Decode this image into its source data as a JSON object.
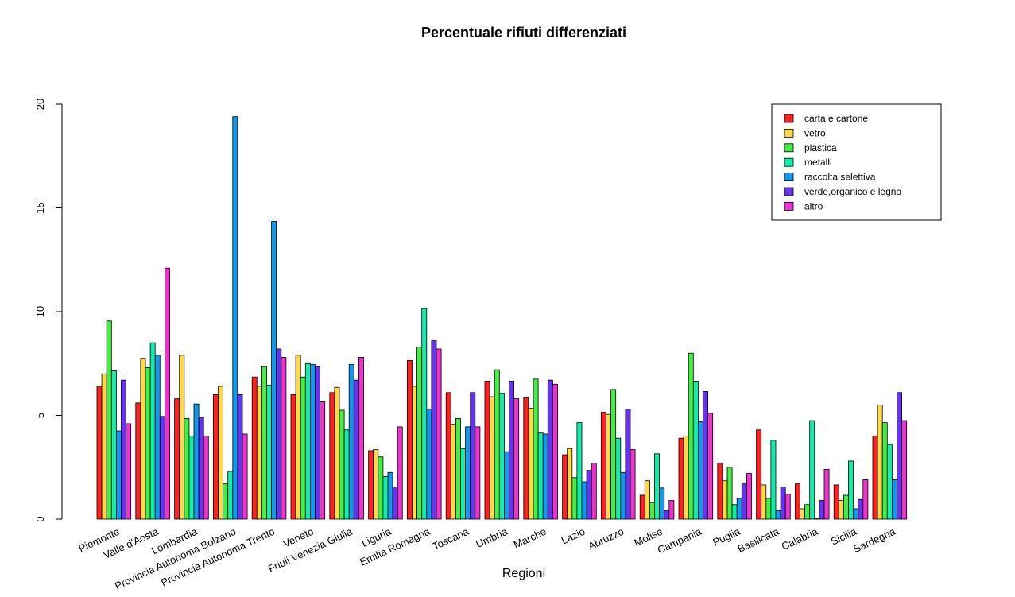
{
  "chart_data": {
    "type": "bar",
    "title": "Percentuale rifiuti differenziati",
    "xlabel": "Regioni",
    "ylabel": "",
    "ylim": [
      0,
      20
    ],
    "yticks": [
      0,
      5,
      10,
      15,
      20
    ],
    "grid": false,
    "legend_position": "top-right",
    "categories": [
      "Piemonte",
      "Valle d'Aosta",
      "Lombardia",
      "Provincia Autonoma Bolzano",
      "Provincia Autonoma Trento",
      "Veneto",
      "Friuli Venezia Giulia",
      "Liguria",
      "Emilia Romagna",
      "Toscana",
      "Umbria",
      "Marche",
      "Lazio",
      "Abruzzo",
      "Molise",
      "Campania",
      "Puglia",
      "Basilicata",
      "Calabria",
      "Sicilia",
      "Sardegna"
    ],
    "series": [
      {
        "name": "carta e cartone",
        "color": "#ff2020",
        "values": [
          6.4,
          5.6,
          5.8,
          6.0,
          6.85,
          6.0,
          6.1,
          3.3,
          7.65,
          6.1,
          6.65,
          5.85,
          3.1,
          5.15,
          1.15,
          3.9,
          2.7,
          4.3,
          1.7,
          1.65,
          4.0
        ]
      },
      {
        "name": "vetro",
        "color": "#ffd94a",
        "values": [
          7.0,
          7.75,
          7.9,
          6.4,
          6.4,
          7.9,
          6.35,
          3.35,
          6.4,
          4.55,
          5.9,
          5.35,
          3.4,
          5.05,
          1.85,
          4.0,
          1.85,
          1.65,
          0.5,
          0.9,
          5.5
        ]
      },
      {
        "name": "plastica",
        "color": "#44ee44",
        "values": [
          9.55,
          7.3,
          4.85,
          1.7,
          7.35,
          6.85,
          5.25,
          3.0,
          8.3,
          4.85,
          7.2,
          6.75,
          2.0,
          6.25,
          0.8,
          8.0,
          2.5,
          1.0,
          0.7,
          1.15,
          4.65
        ]
      },
      {
        "name": "metalli",
        "color": "#11eeaa",
        "values": [
          7.15,
          8.5,
          4.0,
          2.3,
          6.45,
          7.5,
          4.3,
          2.05,
          10.15,
          3.4,
          6.05,
          4.15,
          4.65,
          3.9,
          3.15,
          6.65,
          0.7,
          3.8,
          4.75,
          2.8,
          3.6
        ]
      },
      {
        "name": "raccolta selettiva",
        "color": "#1199ee",
        "values": [
          4.25,
          7.9,
          5.55,
          19.4,
          14.35,
          7.45,
          7.45,
          2.25,
          5.3,
          4.45,
          3.25,
          4.1,
          1.8,
          2.25,
          1.5,
          4.7,
          1.0,
          0.4,
          0.02,
          0.5,
          1.9
        ]
      },
      {
        "name": "verde,organico e legno",
        "color": "#6633ee",
        "values": [
          6.7,
          4.95,
          4.9,
          6.0,
          8.2,
          7.35,
          6.7,
          1.55,
          8.6,
          6.1,
          6.65,
          6.7,
          2.35,
          5.3,
          0.4,
          6.15,
          1.7,
          1.55,
          0.9,
          0.95,
          6.1
        ]
      },
      {
        "name": "altro",
        "color": "#ee33cc",
        "values": [
          4.6,
          12.1,
          4.0,
          4.1,
          7.8,
          5.65,
          7.8,
          4.45,
          8.2,
          4.45,
          5.8,
          6.5,
          2.7,
          3.35,
          0.9,
          5.1,
          2.2,
          1.2,
          2.4,
          1.9,
          4.75
        ]
      }
    ]
  }
}
